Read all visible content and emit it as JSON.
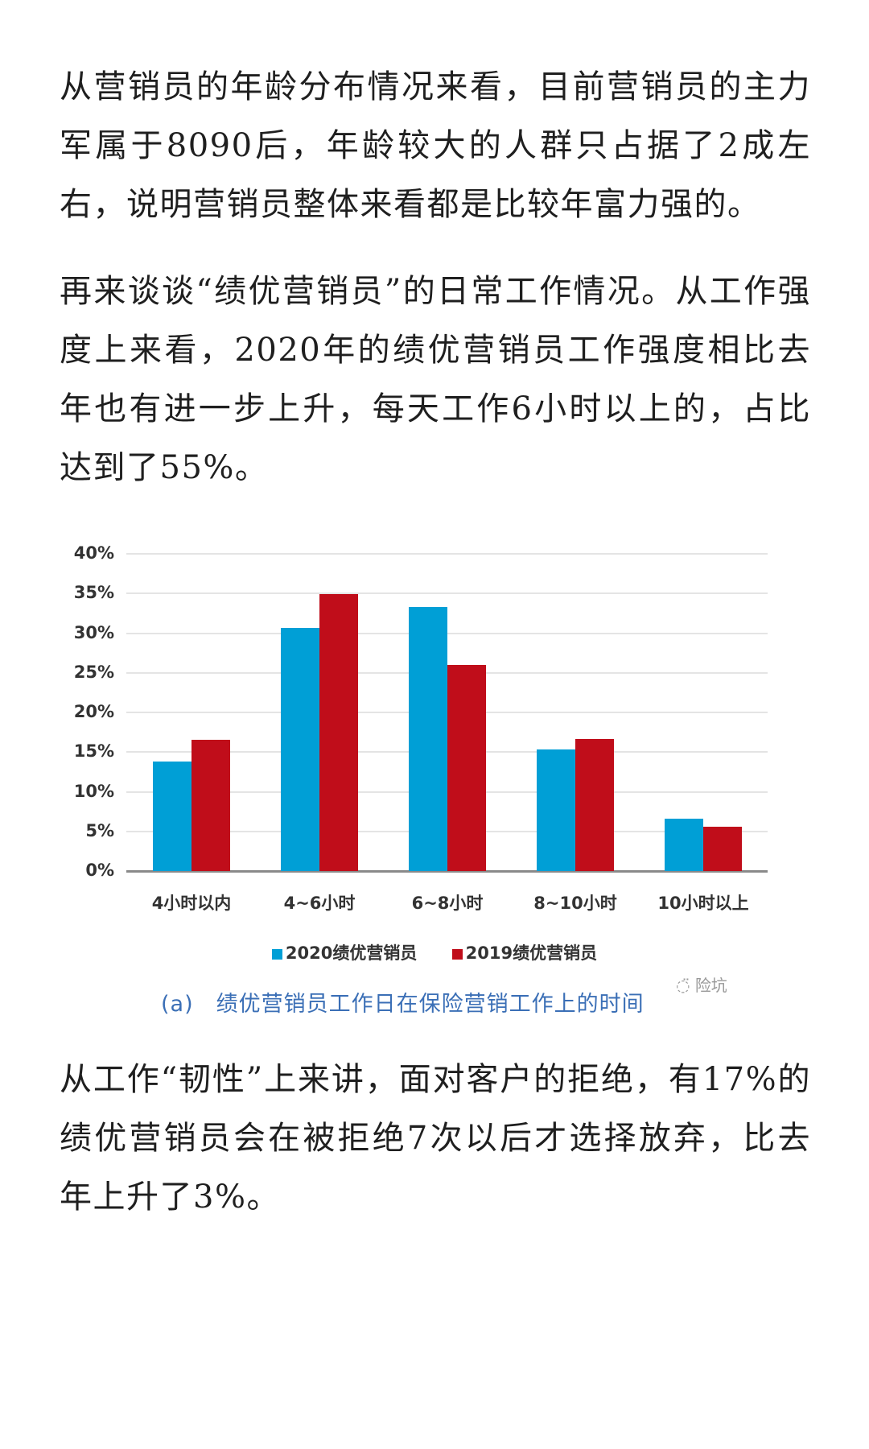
{
  "paragraphs": [
    "从营销员的年龄分布情况来看，目前营销员的主力军属于8090后，年龄较大的人群只占据了2成左右，说明营销员整体来看都是比较年富力强的。",
    "再来谈谈“绩优营销员”的日常工作情况。从工作强度上来看，2020年的绩优营销员工作强度相比去年也有进一步上升，每天工作6小时以上的，占比达到了55%。",
    "从工作“韧性”上来讲，面对客户的拒绝，有17%的绩优营销员会在被拒绝7次以后才选择放弃，比去年上升了3%。"
  ],
  "chart_data": {
    "type": "bar",
    "title": "(a)　绩优营销员工作日在保险营销工作上的时间",
    "xlabel": "",
    "ylabel": "",
    "ylim": [
      0,
      40
    ],
    "yticks": [
      "0%",
      "5%",
      "10%",
      "15%",
      "20%",
      "25%",
      "30%",
      "35%",
      "40%"
    ],
    "grid": true,
    "legend_position": "bottom",
    "categories": [
      "4小时以内",
      "4~6小时",
      "6~8小时",
      "8~10小时",
      "10小时以上"
    ],
    "series": [
      {
        "name": "2020绩优营销员",
        "color": "#009fd6",
        "values": [
          13.8,
          30.7,
          33.3,
          15.3,
          6.6
        ]
      },
      {
        "name": "2019绩优营销员",
        "color": "#c00d1a",
        "values": [
          16.5,
          34.9,
          26.0,
          16.7,
          5.6
        ]
      }
    ]
  },
  "watermark": {
    "icon": "wechat-icon",
    "text": "险坑"
  }
}
